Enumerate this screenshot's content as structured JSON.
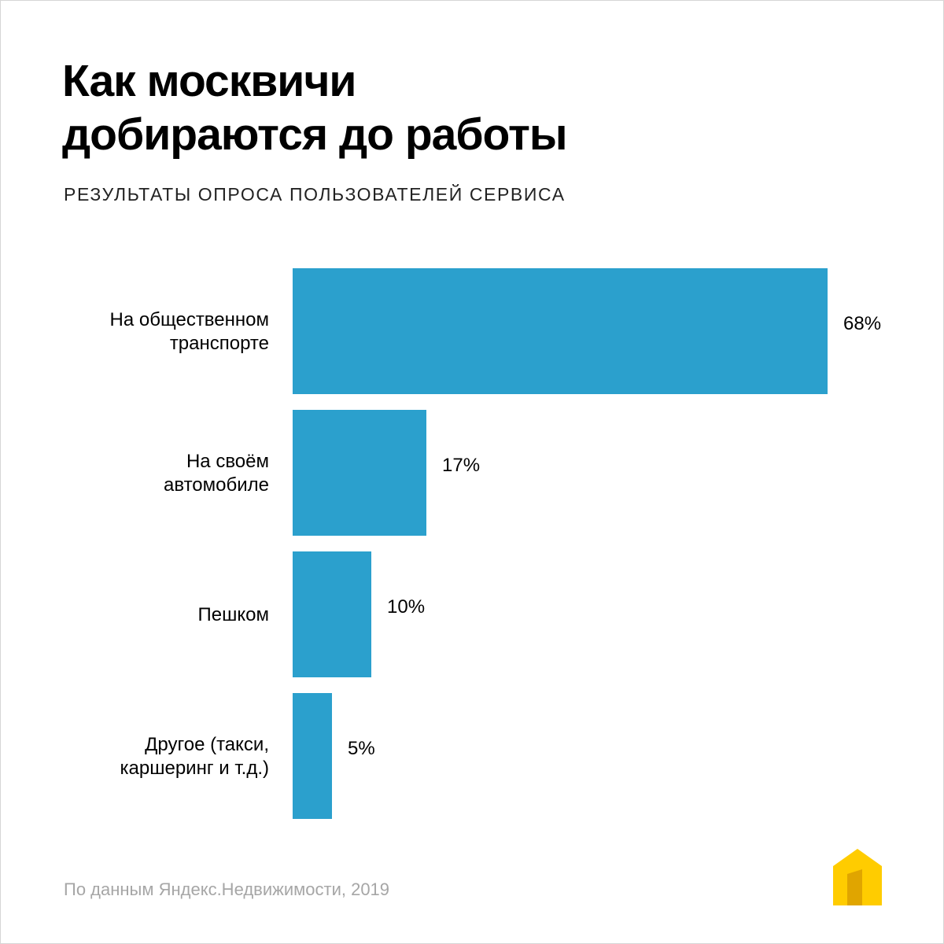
{
  "header": {
    "title_line1": "Как москвичи",
    "title_line2": "добираются до работы",
    "subtitle": "РЕЗУЛЬТАТЫ ОПРОСА ПОЛЬЗОВАТЕЛЕЙ СЕРВИСА"
  },
  "colors": {
    "bar": "#2ba0cd",
    "logo_yellow": "#ffcc00",
    "logo_dark_yellow": "#e0a500"
  },
  "chart_data": {
    "type": "bar",
    "orientation": "horizontal",
    "title": "Как москвичи добираются до работы",
    "subtitle": "РЕЗУЛЬТАТЫ ОПРОСА ПОЛЬЗОВАТЕЛЕЙ СЕРВИСА",
    "categories": [
      [
        "На общественном",
        "транспорте"
      ],
      [
        "На своём",
        "автомобиле"
      ],
      [
        "Пешком"
      ],
      [
        "Другое (такси,",
        "каршеринг и т.д.)"
      ]
    ],
    "values": [
      68,
      17,
      10,
      5
    ],
    "value_labels": [
      "68%",
      "17%",
      "10%",
      "5%"
    ],
    "unit": "%",
    "xlim": [
      0,
      68
    ],
    "xlabel": "",
    "ylabel": "",
    "grid": false
  },
  "footer": {
    "source": "По данным Яндекс.Недвижимости, 2019",
    "logo_icon": "yandex-realty-house-icon"
  }
}
